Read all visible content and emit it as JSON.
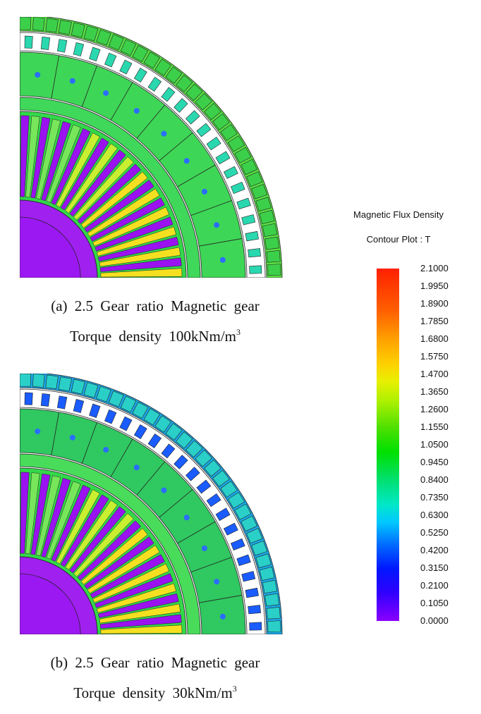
{
  "figures": [
    {
      "caption_line1": "(a) 2.5 Gear ratio Magnetic gear",
      "caption_line2_prefix": "Torque density 100kNm/m",
      "caption_line2_sup": "3"
    },
    {
      "caption_line1": "(b) 2.5 Gear ratio Magnetic gear",
      "caption_line2_prefix": "Torque density 30kNm/m",
      "caption_line2_sup": "3"
    }
  ],
  "legend": {
    "title_line1": "Magnetic Flux Density",
    "title_line2": "Contour Plot : T",
    "ticks": [
      "2.1000",
      "1.9950",
      "1.8900",
      "1.7850",
      "1.6800",
      "1.5750",
      "1.4700",
      "1.3650",
      "1.2600",
      "1.1550",
      "1.0500",
      "0.9450",
      "0.8400",
      "0.7350",
      "0.6300",
      "0.5250",
      "0.4200",
      "0.3150",
      "0.2100",
      "0.1050",
      "0.0000"
    ],
    "colors": {
      "max": "#ff2000",
      "mid": "#00e000",
      "min": "#8a00ff"
    }
  }
}
